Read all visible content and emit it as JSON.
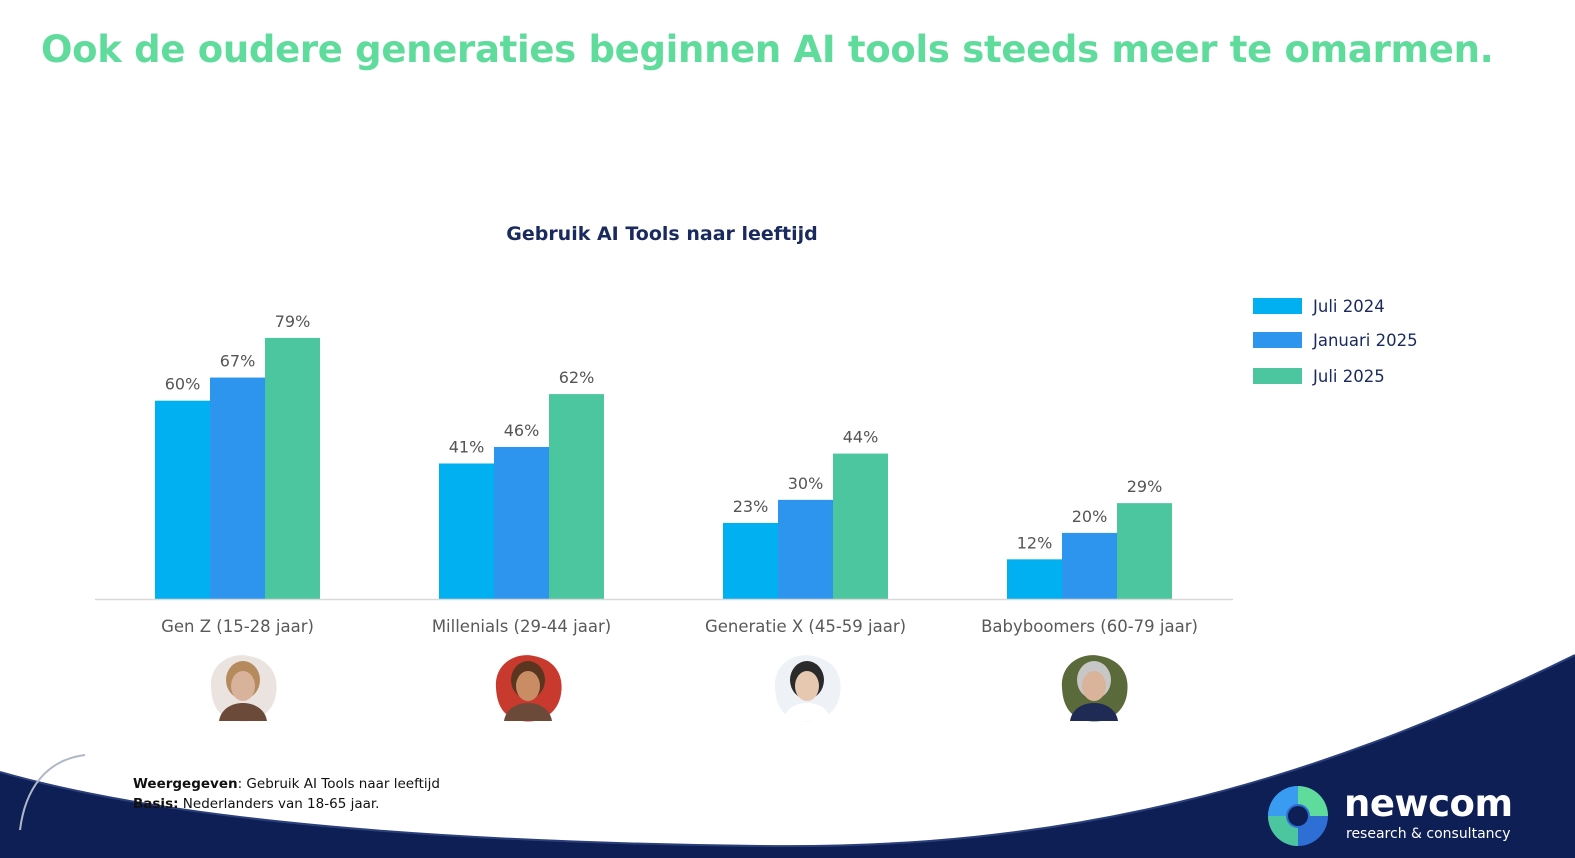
{
  "headline": "Ook de oudere generaties beginnen AI tools steeds meer te omarmen.",
  "chart_data": {
    "type": "bar",
    "title": "Gebruik AI Tools naar leeftijd",
    "categories": [
      "Gen Z (15-28 jaar)",
      "Millenials (29-44 jaar)",
      "Generatie X (45-59 jaar)",
      "Babyboomers (60-79 jaar)"
    ],
    "series": [
      {
        "name": "Juli 2024",
        "color": "#00b0f0",
        "values": [
          60,
          41,
          23,
          12
        ]
      },
      {
        "name": "Januari 2025",
        "color": "#2e95ef",
        "values": [
          67,
          46,
          30,
          20
        ]
      },
      {
        "name": "Juli 2025",
        "color": "#4cc69e",
        "values": [
          79,
          62,
          44,
          29
        ]
      }
    ],
    "value_suffix": "%",
    "ylim": [
      0,
      100
    ],
    "grid": false,
    "legend_position": "right"
  },
  "footnote": {
    "shown_key": "Weergegeven",
    "shown_value": ": Gebruik AI Tools naar leeftijd",
    "base_key": "Basis:",
    "base_value": " Nederlanders van 18-65 jaar."
  },
  "logo": {
    "name": "newcom",
    "tagline": "research & consultancy"
  },
  "colors": {
    "headline": "#5fdb9c",
    "wave": "#0e1f55"
  }
}
